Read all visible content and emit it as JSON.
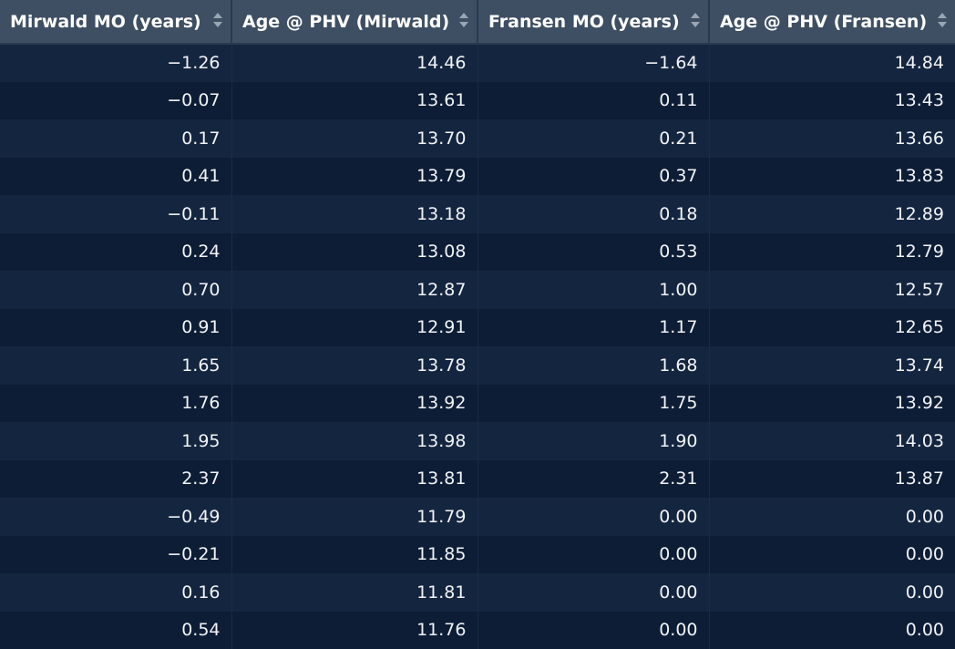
{
  "table": {
    "columns": [
      "Mirwald MO (years)",
      "Age @ PHV (Mirwald)",
      "Fransen MO (years)",
      "Age @ PHV (Fransen)"
    ],
    "rows": [
      [
        "-1.26",
        "14.46",
        "-1.64",
        "14.84"
      ],
      [
        "-0.07",
        "13.61",
        "0.11",
        "13.43"
      ],
      [
        "0.17",
        "13.70",
        "0.21",
        "13.66"
      ],
      [
        "0.41",
        "13.79",
        "0.37",
        "13.83"
      ],
      [
        "-0.11",
        "13.18",
        "0.18",
        "12.89"
      ],
      [
        "0.24",
        "13.08",
        "0.53",
        "12.79"
      ],
      [
        "0.70",
        "12.87",
        "1.00",
        "12.57"
      ],
      [
        "0.91",
        "12.91",
        "1.17",
        "12.65"
      ],
      [
        "1.65",
        "13.78",
        "1.68",
        "13.74"
      ],
      [
        "1.76",
        "13.92",
        "1.75",
        "13.92"
      ],
      [
        "1.95",
        "13.98",
        "1.90",
        "14.03"
      ],
      [
        "2.37",
        "13.81",
        "2.31",
        "13.87"
      ],
      [
        "-0.49",
        "11.79",
        "0.00",
        "0.00"
      ],
      [
        "-0.21",
        "11.85",
        "0.00",
        "0.00"
      ],
      [
        "0.16",
        "11.81",
        "0.00",
        "0.00"
      ],
      [
        "0.54",
        "11.76",
        "0.00",
        "0.00"
      ]
    ],
    "icons": {
      "sort": "sort-icon"
    },
    "colors": {
      "header_bg": "#3e4f63",
      "row_odd": "#14253f",
      "row_even": "#0d1d36",
      "text": "#f2f4f7"
    }
  }
}
